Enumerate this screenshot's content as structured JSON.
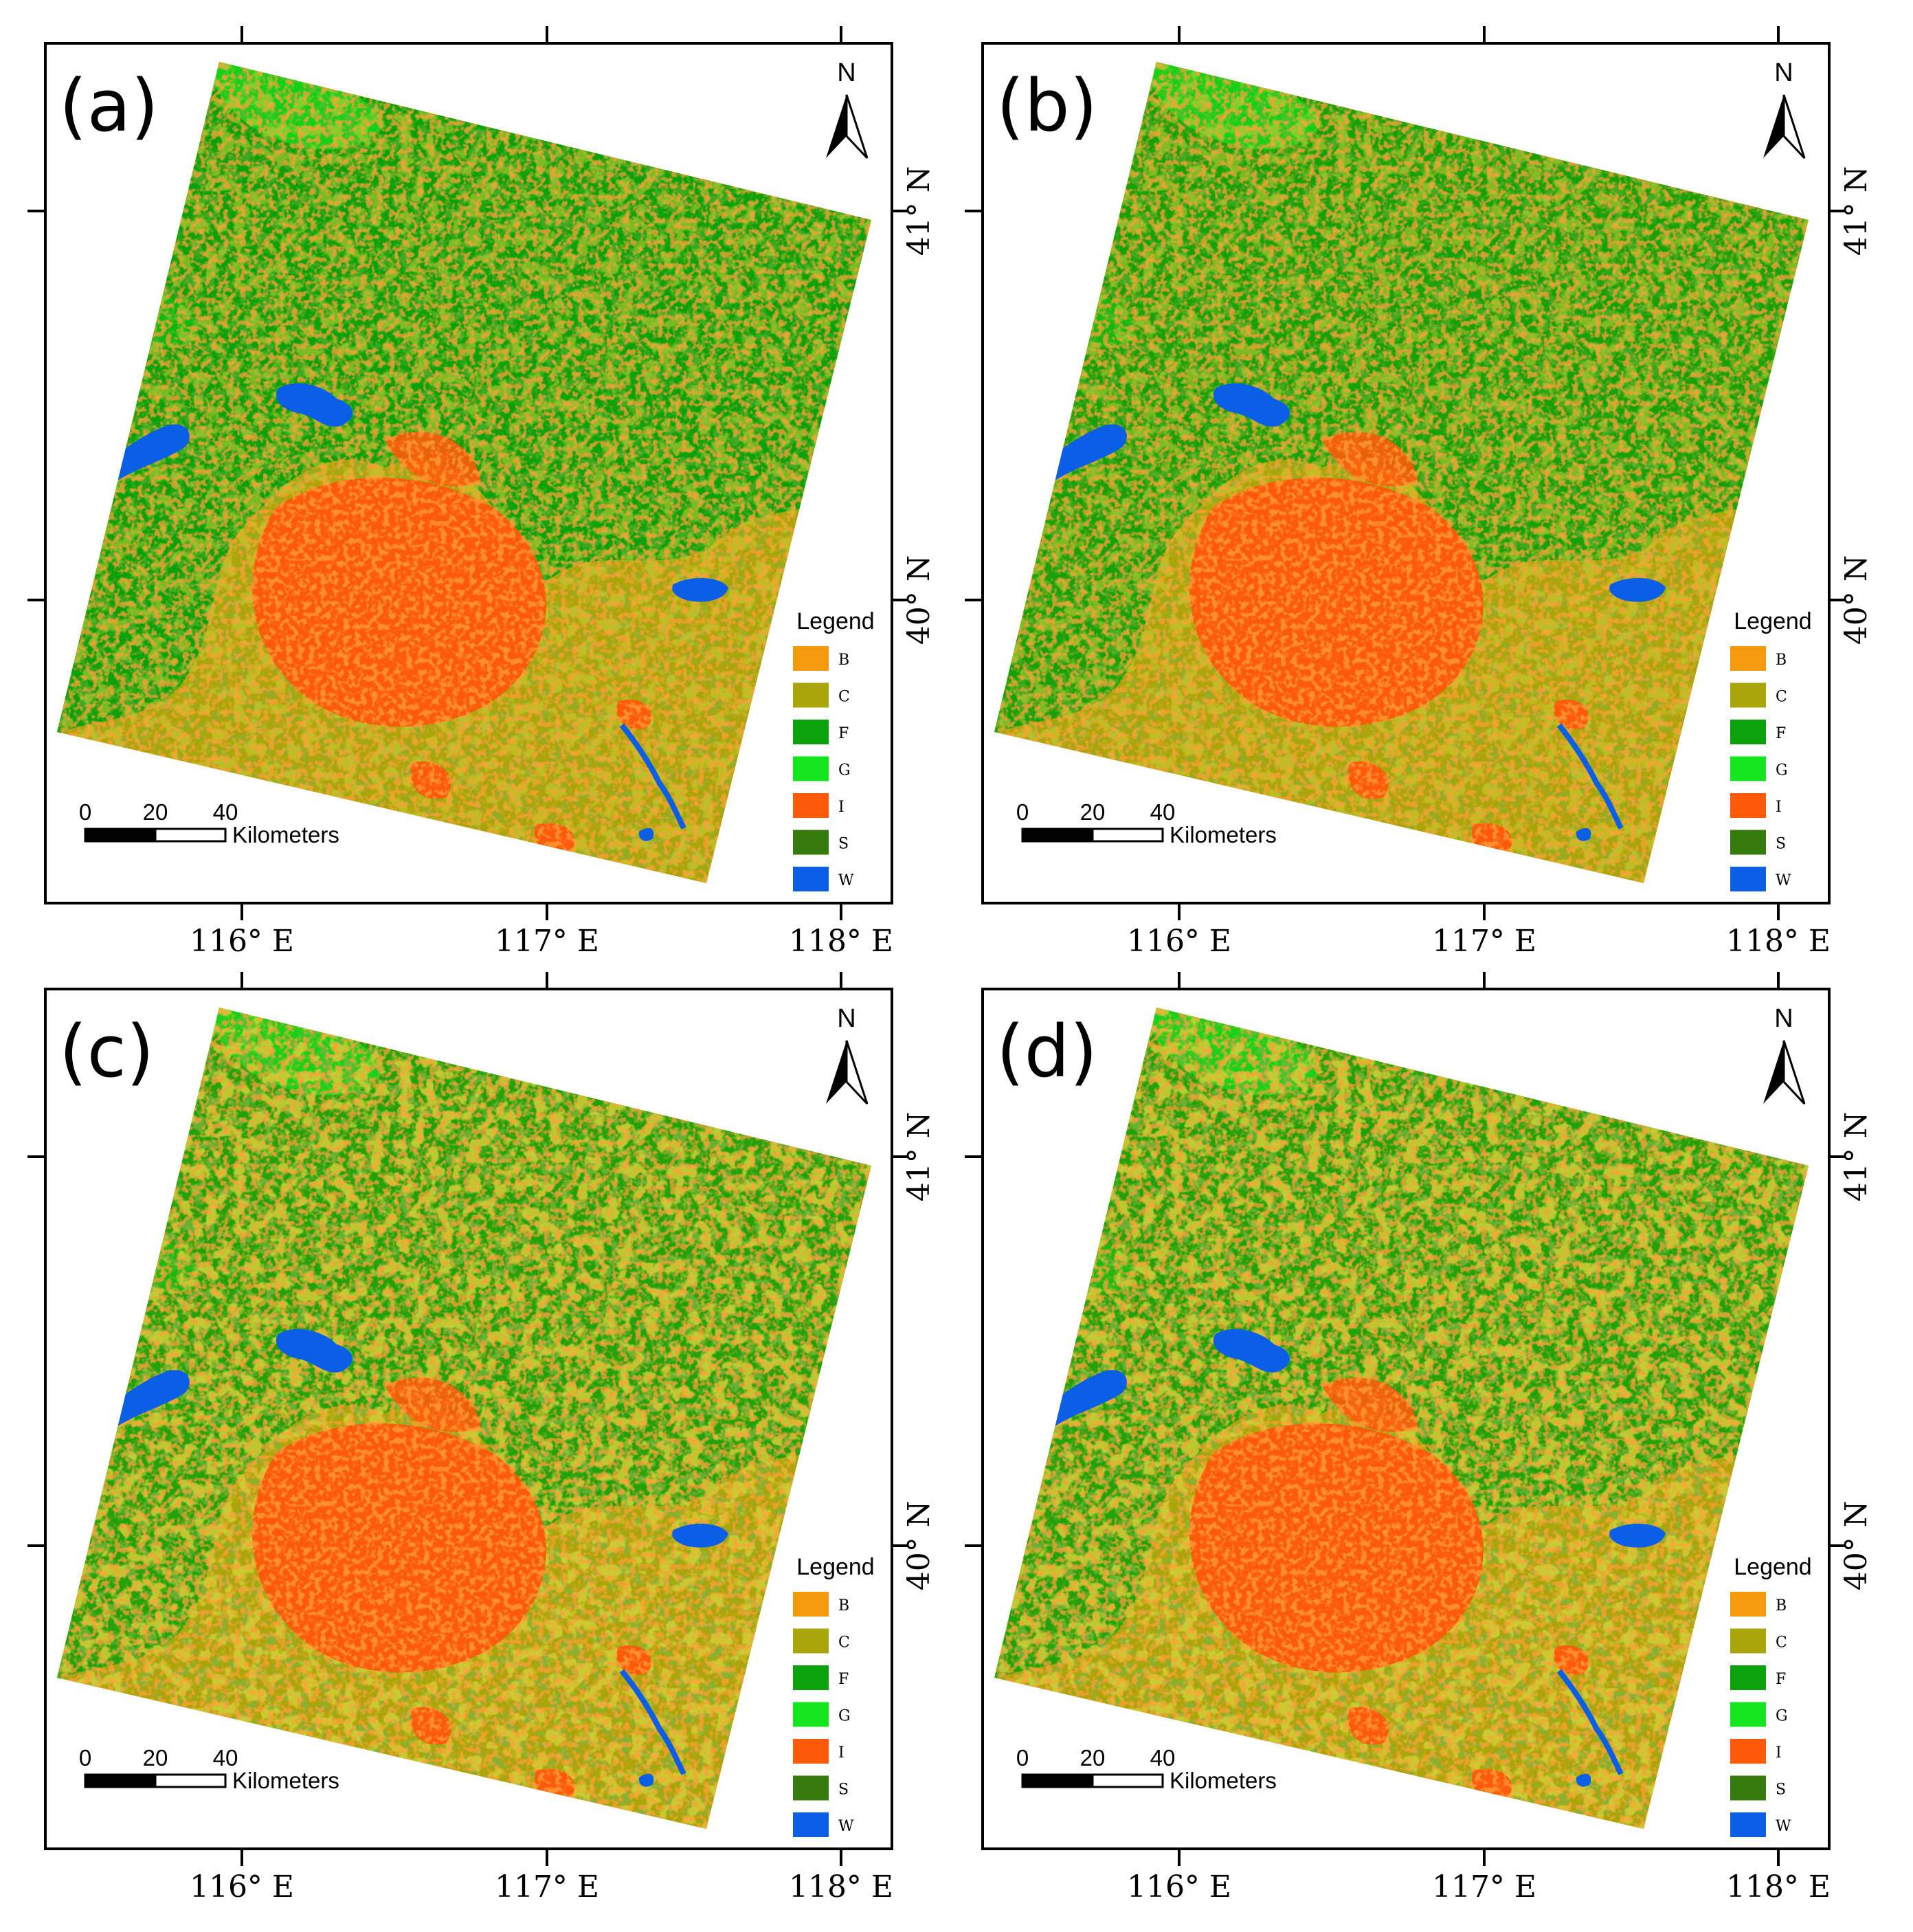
{
  "panels": [
    {
      "label": "(a)",
      "variant": 0
    },
    {
      "label": "(b)",
      "variant": 1
    },
    {
      "label": "(c)",
      "variant": 2
    },
    {
      "label": "(d)",
      "variant": 3
    }
  ],
  "x_ticks": [
    "116° E",
    "117° E",
    "118° E"
  ],
  "y_ticks": [
    "41° N",
    "40° N"
  ],
  "north_label": "N",
  "legend": {
    "title": "Legend",
    "items": [
      {
        "code": "B",
        "color": "#f59a0c"
      },
      {
        "code": "C",
        "color": "#a9a50a"
      },
      {
        "code": "F",
        "color": "#0aa10a"
      },
      {
        "code": "G",
        "color": "#14e61e"
      },
      {
        "code": "I",
        "color": "#ff5a0a"
      },
      {
        "code": "S",
        "color": "#357a0c"
      },
      {
        "code": "W",
        "color": "#0a5fe6"
      }
    ]
  },
  "scale_bar": {
    "ticks": [
      "0",
      "20",
      "40"
    ],
    "unit": "Kilometers"
  }
}
